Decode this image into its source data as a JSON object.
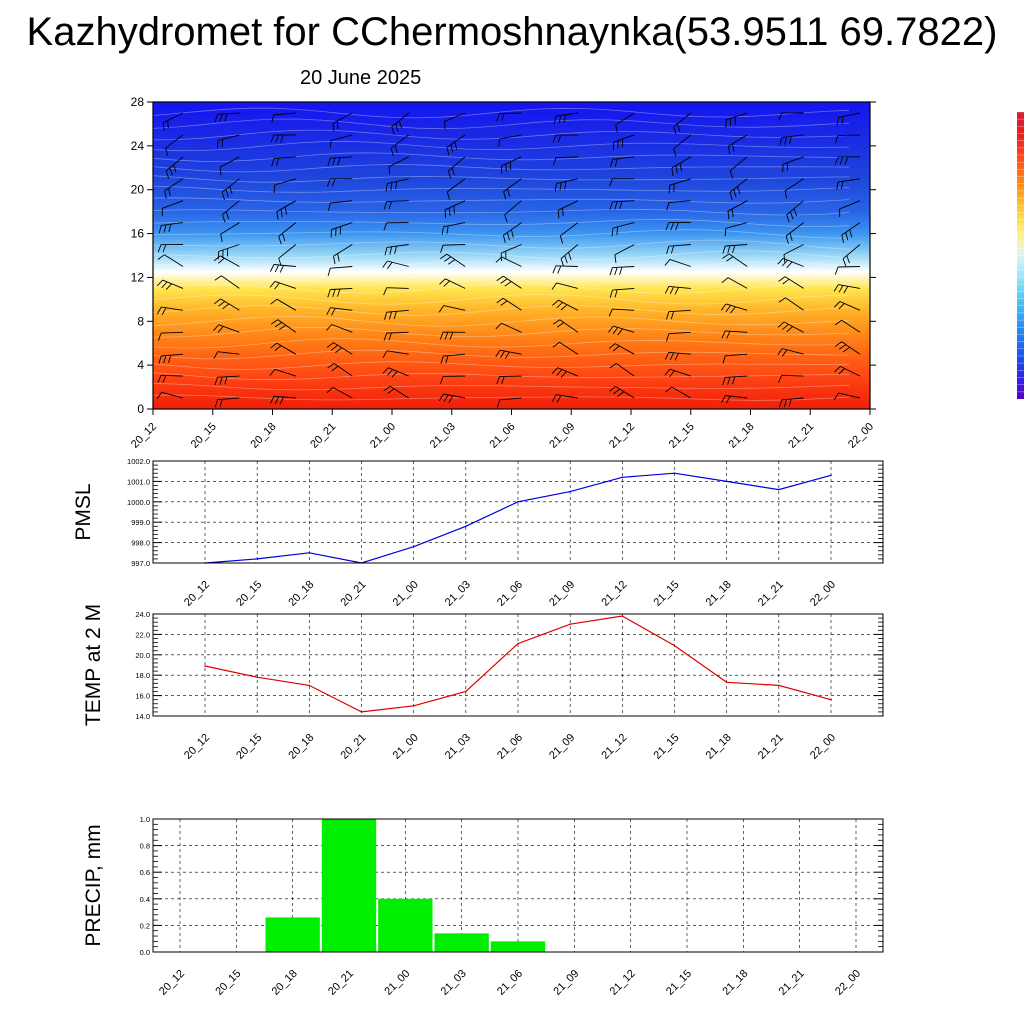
{
  "title": "Kazhydromet for CChermoshnaynka(53.9511 69.7822)",
  "subtitle": "20 June 2025",
  "time_labels": [
    "20_12",
    "20_15",
    "20_18",
    "20_21",
    "21_00",
    "21_03",
    "21_06",
    "21_09",
    "21_12",
    "21_15",
    "21_18",
    "21_21",
    "22_00"
  ],
  "colorbar_colors": [
    "#5a00c8",
    "#2a2ae6",
    "#1c5cf0",
    "#2c8ef0",
    "#46c0f4",
    "#8ee4f8",
    "#dcf4f8",
    "#fff07a",
    "#ffc832",
    "#ff8c14",
    "#ff501e",
    "#f01e1e",
    "#d21e3c"
  ],
  "chart_data": [
    {
      "type": "heatmap",
      "description_axis": "y",
      "x": [
        "20_12",
        "20_15",
        "20_18",
        "20_21",
        "21_00",
        "21_03",
        "21_06",
        "21_09",
        "21_12",
        "21_15",
        "21_18",
        "21_21",
        "22_00"
      ],
      "y_ticks": [
        0,
        4,
        8,
        12,
        16,
        20,
        24,
        28
      ],
      "ylim": [
        0,
        28
      ],
      "color_stops": [
        {
          "y": 0,
          "color": "#f01e0a"
        },
        {
          "y": 3,
          "color": "#ff4614"
        },
        {
          "y": 6,
          "color": "#ff7814"
        },
        {
          "y": 9,
          "color": "#ffb428"
        },
        {
          "y": 11,
          "color": "#ffe650"
        },
        {
          "y": 12.5,
          "color": "#ffffff"
        },
        {
          "y": 14,
          "color": "#9ad8f6"
        },
        {
          "y": 16,
          "color": "#3c96f0"
        },
        {
          "y": 18,
          "color": "#2864e6"
        },
        {
          "y": 21,
          "color": "#1e46dc"
        },
        {
          "y": 25,
          "color": "#1a28e6"
        },
        {
          "y": 28,
          "color": "#1414f0"
        }
      ]
    },
    {
      "type": "line",
      "ylabel": "PMSL",
      "x": [
        "20_12",
        "20_15",
        "20_18",
        "20_21",
        "21_00",
        "21_03",
        "21_06",
        "21_09",
        "21_12",
        "21_15",
        "21_18",
        "21_21",
        "22_00"
      ],
      "values": [
        997.0,
        997.2,
        997.5,
        997.0,
        997.8,
        998.8,
        1000.0,
        1000.5,
        1001.2,
        1001.4,
        1001.0,
        1000.6,
        1001.3
      ],
      "ylim": [
        997.0,
        1002.0
      ],
      "yticks": [
        "997.0",
        "998.0",
        "999.0",
        "1000.0",
        "1001.0",
        "1002.0"
      ],
      "color": "#0000dd",
      "grid": true
    },
    {
      "type": "line",
      "ylabel": "TEMP at 2 M",
      "x": [
        "20_12",
        "20_15",
        "20_18",
        "20_21",
        "21_00",
        "21_03",
        "21_06",
        "21_09",
        "21_12",
        "21_15",
        "21_18",
        "21_21",
        "22_00"
      ],
      "values": [
        18.9,
        17.8,
        17.0,
        14.4,
        15.0,
        16.4,
        21.1,
        23.0,
        23.8,
        20.9,
        17.3,
        17.0,
        15.6
      ],
      "ylim": [
        14.0,
        24.0
      ],
      "yticks": [
        "14.0",
        "16.0",
        "18.0",
        "20.0",
        "22.0",
        "24.0"
      ],
      "color": "#e00000",
      "grid": true
    },
    {
      "type": "bar",
      "ylabel": "PRECIP, mm",
      "categories": [
        "20_12",
        "20_15",
        "20_18",
        "20_21",
        "21_00",
        "21_03",
        "21_06",
        "21_09",
        "21_12",
        "21_15",
        "21_18",
        "21_21",
        "22_00"
      ],
      "values": [
        0.0,
        0.0,
        0.26,
        1.0,
        0.4,
        0.14,
        0.08,
        0.0,
        0.0,
        0.0,
        0.0,
        0.0,
        0.0
      ],
      "ylim": [
        0.0,
        1.0
      ],
      "yticks": [
        "0.0",
        "0.2",
        "0.4",
        "0.6",
        "0.8",
        "1.0"
      ],
      "color": "#00ee00",
      "grid": true
    }
  ]
}
